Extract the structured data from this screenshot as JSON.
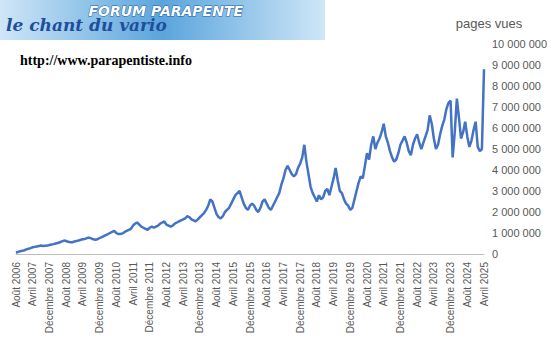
{
  "chart_data": {
    "type": "line",
    "y_label": "pages vues",
    "annotations": [
      "FORUM PARAPENTE",
      "le chant du vario",
      "http://www.parapentiste.info"
    ],
    "color": "#4472c4",
    "grid": false,
    "ylim": [
      0,
      10000000
    ],
    "yticks": [
      0,
      {
        "value": 1000000,
        "label": "1 000 000"
      },
      {
        "value": 2000000,
        "label": "2 000 000"
      },
      {
        "value": 3000000,
        "label": "3 000 000"
      },
      {
        "value": 4000000,
        "label": "4 000 000"
      },
      {
        "value": 5000000,
        "label": "5 000 000"
      },
      {
        "value": 6000000,
        "label": "6 000 000"
      },
      {
        "value": 7000000,
        "label": "7 000 000"
      },
      {
        "value": 8000000,
        "label": "8 000 000"
      },
      {
        "value": 9000000,
        "label": "9 000 000"
      },
      {
        "value": 10000000,
        "label": "10 000 000"
      }
    ],
    "categories": [
      "Août 2006",
      null,
      null,
      null,
      null,
      null,
      null,
      null,
      "Avril 2007",
      null,
      null,
      null,
      null,
      null,
      null,
      null,
      "Décembre 2007",
      null,
      null,
      null,
      null,
      null,
      null,
      null,
      "Août 2008",
      null,
      null,
      null,
      null,
      null,
      null,
      null,
      "Avril 2009",
      null,
      null,
      null,
      null,
      null,
      null,
      null,
      "Décembre 2009",
      null,
      null,
      null,
      null,
      null,
      null,
      null,
      "Août 2010",
      null,
      null,
      null,
      null,
      null,
      null,
      null,
      "Avril 2011",
      null,
      null,
      null,
      null,
      null,
      null,
      null,
      "Décembre 2011",
      null,
      null,
      null,
      null,
      null,
      null,
      null,
      "Août 2012",
      null,
      null,
      null,
      null,
      null,
      null,
      null,
      "Avril 2013",
      null,
      null,
      null,
      null,
      null,
      null,
      null,
      "Décembre 2013",
      null,
      null,
      null,
      null,
      null,
      null,
      null,
      "Août 2014",
      null,
      null,
      null,
      null,
      null,
      null,
      null,
      "Avril 2015",
      null,
      null,
      null,
      null,
      null,
      null,
      null,
      "Décembre 2015",
      null,
      null,
      null,
      null,
      null,
      null,
      null,
      "Août 2016",
      null,
      null,
      null,
      null,
      null,
      null,
      null,
      "Avril 2017",
      null,
      null,
      null,
      null,
      null,
      null,
      null,
      "Décembre 2017",
      null,
      null,
      null,
      null,
      null,
      null,
      null,
      "Août 2018",
      null,
      null,
      null,
      null,
      null,
      null,
      null,
      "Avril 2019",
      null,
      null,
      null,
      null,
      null,
      null,
      null,
      "Décembre 2019",
      null,
      null,
      null,
      null,
      null,
      null,
      null,
      "Août 2020",
      null,
      null,
      null,
      null,
      null,
      null,
      null,
      "Avril 2021",
      null,
      null,
      null,
      null,
      null,
      null,
      null,
      "Décembre 2021",
      null,
      null,
      null,
      null,
      null,
      null,
      null,
      "Août 2022",
      null,
      null,
      null,
      null,
      null,
      null,
      null,
      "Avril 2023",
      null,
      null,
      null,
      null,
      null,
      null,
      null,
      "Décembre 2023",
      null,
      null,
      null,
      null,
      null,
      null,
      null,
      "Août 2024",
      null,
      null,
      null,
      null,
      null,
      null,
      null,
      "Avril 2025"
    ],
    "values": [
      60000,
      100000,
      130000,
      150000,
      180000,
      220000,
      250000,
      280000,
      320000,
      340000,
      360000,
      380000,
      400000,
      380000,
      390000,
      400000,
      430000,
      450000,
      470000,
      500000,
      520000,
      560000,
      600000,
      640000,
      620000,
      580000,
      560000,
      560000,
      600000,
      620000,
      640000,
      680000,
      700000,
      720000,
      760000,
      780000,
      740000,
      700000,
      680000,
      700000,
      760000,
      800000,
      850000,
      900000,
      950000,
      1000000,
      1050000,
      1100000,
      1000000,
      950000,
      950000,
      980000,
      1050000,
      1100000,
      1150000,
      1200000,
      1350000,
      1450000,
      1500000,
      1400000,
      1300000,
      1250000,
      1200000,
      1150000,
      1250000,
      1300000,
      1250000,
      1300000,
      1350000,
      1450000,
      1500000,
      1550000,
      1400000,
      1350000,
      1300000,
      1350000,
      1450000,
      1500000,
      1550000,
      1600000,
      1650000,
      1700000,
      1800000,
      1750000,
      1650000,
      1600000,
      1550000,
      1650000,
      1750000,
      1850000,
      1950000,
      2100000,
      2300000,
      2600000,
      2500000,
      2200000,
      1900000,
      1750000,
      1700000,
      1800000,
      2000000,
      2100000,
      2200000,
      2400000,
      2600000,
      2800000,
      2900000,
      3000000,
      2700000,
      2400000,
      2200000,
      2100000,
      2300000,
      2400000,
      2300000,
      2100000,
      2000000,
      2200000,
      2500000,
      2600000,
      2400000,
      2200000,
      2100000,
      2300000,
      2500000,
      2700000,
      2900000,
      3300000,
      3600000,
      4000000,
      4200000,
      4000000,
      3800000,
      3700000,
      3800000,
      4100000,
      4300000,
      4600000,
      5200000,
      4400000,
      3800000,
      3200000,
      2900000,
      2700000,
      2500000,
      2800000,
      2600000,
      2700000,
      3000000,
      3100000,
      2800000,
      3200000,
      3600000,
      4100000,
      3500000,
      3000000,
      2900000,
      2600000,
      2400000,
      2300000,
      2100000,
      2200000,
      2600000,
      3000000,
      3400000,
      3700000,
      3600000,
      4200000,
      4800000,
      4500000,
      5200000,
      5600000,
      5000000,
      5300000,
      5500000,
      5800000,
      6200000,
      5600000,
      5300000,
      4900000,
      4600000,
      4400000,
      4500000,
      4800000,
      5200000,
      5400000,
      5600000,
      5300000,
      4900000,
      4700000,
      5200000,
      5500000,
      5700000,
      5300000,
      5000000,
      5300000,
      5600000,
      5900000,
      6600000,
      6200000,
      5500000,
      5000000,
      5200000,
      5700000,
      6100000,
      6400000,
      6900000,
      7200000,
      7300000,
      4600000,
      5800000,
      7400000,
      6500000,
      5500000,
      5800000,
      6300000,
      5600000,
      5100000,
      5400000,
      5900000,
      6300000,
      5100000,
      4900000,
      5000000,
      8800000
    ]
  }
}
